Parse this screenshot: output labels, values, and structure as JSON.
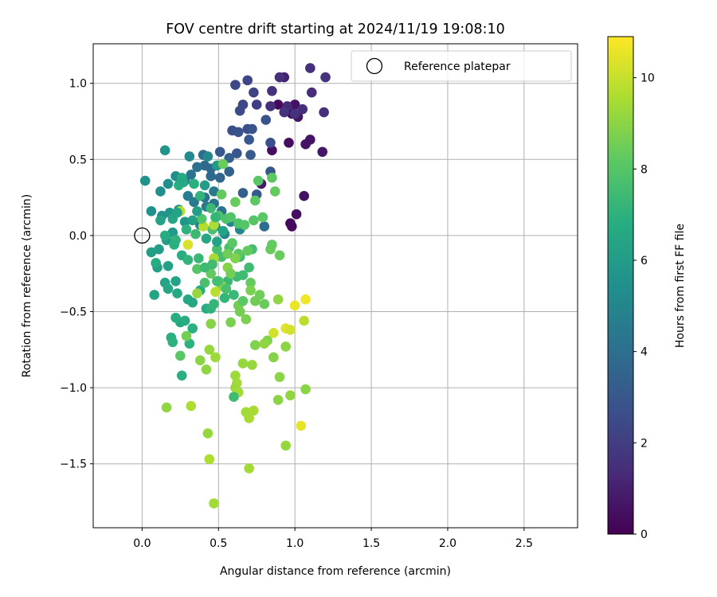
{
  "chart_data": {
    "type": "scatter",
    "title": "FOV centre drift starting at 2024/11/19 19:08:10",
    "xlabel": "Angular distance from reference (arcmin)",
    "ylabel": "Rotation from reference (arcmin)",
    "xlim": [
      -0.32,
      2.85
    ],
    "ylim": [
      -1.92,
      1.26
    ],
    "xticks": [
      0.0,
      0.5,
      1.0,
      1.5,
      2.0,
      2.5
    ],
    "xtick_labels": [
      "0.0",
      "0.5",
      "1.0",
      "1.5",
      "2.0",
      "2.5"
    ],
    "yticks": [
      -1.5,
      -1.0,
      -0.5,
      0.0,
      0.5,
      1.0
    ],
    "ytick_labels": [
      "−1.5",
      "−1.0",
      "−0.5",
      "0.0",
      "0.5",
      "1.0"
    ],
    "grid": true,
    "legend": {
      "placement": "top-right",
      "label": "Reference platepar",
      "marker": "open-circle"
    },
    "reference_point": {
      "x": 0.0,
      "y": 0.0
    },
    "colorbar": {
      "label": "Hours from first FF file",
      "range": [
        0,
        10.9
      ],
      "ticks": [
        0,
        2,
        4,
        6,
        8,
        10
      ],
      "tick_labels": [
        "0",
        "2",
        "4",
        "6",
        "8",
        "10"
      ],
      "colormap": "viridis"
    },
    "points": [
      [
        0.89,
        0.86,
        0.3
      ],
      [
        0.98,
        0.8,
        0.4
      ],
      [
        1.07,
        0.6,
        0.6
      ],
      [
        1.1,
        0.63,
        0.6
      ],
      [
        1.18,
        0.55,
        0.7
      ],
      [
        1.0,
        0.86,
        0.5
      ],
      [
        1.02,
        0.78,
        0.6
      ],
      [
        0.85,
        0.56,
        0.4
      ],
      [
        0.98,
        0.06,
        0.3
      ],
      [
        0.97,
        0.08,
        0.3
      ],
      [
        1.01,
        0.14,
        0.4
      ],
      [
        1.06,
        0.26,
        0.5
      ],
      [
        0.96,
        0.61,
        0.4
      ],
      [
        0.78,
        0.34,
        0.8
      ],
      [
        0.93,
        1.04,
        1.0
      ],
      [
        1.1,
        1.1,
        1.5
      ],
      [
        1.2,
        1.04,
        1.6
      ],
      [
        1.11,
        0.94,
        1.4
      ],
      [
        1.19,
        0.81,
        1.5
      ],
      [
        1.05,
        0.83,
        1.4
      ],
      [
        0.95,
        0.85,
        1.3
      ],
      [
        0.9,
        1.04,
        1.5
      ],
      [
        0.85,
        0.95,
        1.6
      ],
      [
        0.84,
        0.85,
        1.5
      ],
      [
        0.93,
        0.81,
        1.6
      ],
      [
        1.0,
        0.8,
        1.6
      ],
      [
        0.75,
        0.86,
        2.0
      ],
      [
        0.73,
        0.94,
        2.2
      ],
      [
        0.69,
        1.02,
        2.3
      ],
      [
        0.61,
        0.99,
        2.4
      ],
      [
        0.66,
        0.86,
        2.4
      ],
      [
        0.64,
        0.82,
        2.5
      ],
      [
        0.59,
        0.69,
        2.6
      ],
      [
        0.63,
        0.68,
        2.8
      ],
      [
        0.69,
        0.7,
        2.7
      ],
      [
        0.81,
        0.76,
        2.8
      ],
      [
        0.84,
        0.61,
        2.7
      ],
      [
        0.72,
        0.7,
        2.9
      ],
      [
        0.7,
        0.63,
        3.0
      ],
      [
        0.62,
        0.54,
        3.0
      ],
      [
        0.51,
        0.55,
        3.1
      ],
      [
        0.57,
        0.51,
        3.3
      ],
      [
        0.71,
        0.53,
        3.2
      ],
      [
        0.84,
        0.42,
        3.0
      ],
      [
        0.75,
        0.27,
        3.1
      ],
      [
        0.66,
        0.28,
        3.3
      ],
      [
        0.57,
        0.42,
        3.5
      ],
      [
        0.51,
        0.38,
        3.6
      ],
      [
        0.45,
        0.44,
        3.7
      ],
      [
        0.41,
        0.46,
        3.8
      ],
      [
        0.45,
        0.39,
        3.8
      ],
      [
        0.4,
        0.53,
        3.9
      ],
      [
        0.36,
        0.45,
        4.0
      ],
      [
        0.32,
        0.4,
        4.2
      ],
      [
        0.28,
        0.36,
        4.3
      ],
      [
        0.41,
        0.25,
        4.1
      ],
      [
        0.47,
        0.21,
        4.2
      ],
      [
        0.52,
        0.16,
        4.3
      ],
      [
        0.47,
        0.29,
        4.4
      ],
      [
        0.42,
        0.19,
        4.5
      ],
      [
        0.34,
        0.22,
        4.5
      ],
      [
        0.3,
        0.26,
        4.6
      ],
      [
        0.38,
        0.07,
        4.7
      ],
      [
        0.48,
        0.06,
        4.8
      ],
      [
        0.54,
        0.01,
        4.9
      ],
      [
        0.58,
        0.09,
        4.9
      ],
      [
        0.64,
        0.04,
        5.0
      ],
      [
        0.8,
        0.06,
        3.9
      ],
      [
        0.43,
        0.52,
        5.1
      ],
      [
        0.31,
        0.52,
        5.2
      ],
      [
        0.22,
        0.39,
        5.3
      ],
      [
        0.17,
        0.34,
        5.4
      ],
      [
        0.12,
        0.29,
        5.4
      ],
      [
        0.02,
        0.36,
        5.6
      ],
      [
        0.15,
        0.56,
        5.7
      ],
      [
        0.06,
        0.16,
        5.5
      ],
      [
        0.13,
        0.13,
        5.6
      ],
      [
        0.18,
        0.15,
        5.7
      ],
      [
        0.24,
        0.17,
        5.8
      ],
      [
        0.28,
        0.09,
        5.7
      ],
      [
        0.2,
        0.02,
        5.9
      ],
      [
        0.16,
        -0.03,
        6.0
      ],
      [
        0.11,
        -0.09,
        6.0
      ],
      [
        0.06,
        -0.11,
        6.1
      ],
      [
        0.1,
        -0.21,
        6.2
      ],
      [
        0.17,
        -0.2,
        6.2
      ],
      [
        0.22,
        -0.3,
        6.3
      ],
      [
        0.15,
        -0.31,
        6.4
      ],
      [
        0.08,
        -0.39,
        6.4
      ],
      [
        0.17,
        -0.35,
        6.5
      ],
      [
        0.23,
        -0.38,
        6.6
      ],
      [
        0.3,
        -0.42,
        6.6
      ],
      [
        0.33,
        -0.44,
        6.5
      ],
      [
        0.38,
        -0.36,
        6.7
      ],
      [
        0.42,
        -0.48,
        6.7
      ],
      [
        0.25,
        -0.57,
        6.6
      ],
      [
        0.22,
        -0.54,
        6.8
      ],
      [
        0.28,
        -0.56,
        6.8
      ],
      [
        0.33,
        -0.61,
        6.9
      ],
      [
        0.19,
        -0.67,
        6.9
      ],
      [
        0.2,
        -0.7,
        7.0
      ],
      [
        0.31,
        -0.71,
        7.0
      ],
      [
        0.26,
        -0.92,
        6.9
      ],
      [
        0.45,
        -0.48,
        7.1
      ],
      [
        0.47,
        -0.45,
        7.2
      ],
      [
        0.54,
        -0.41,
        7.2
      ],
      [
        0.6,
        -0.39,
        7.3
      ],
      [
        0.56,
        -0.3,
        7.3
      ],
      [
        0.62,
        -0.27,
        7.4
      ],
      [
        0.66,
        -0.26,
        7.5
      ],
      [
        0.7,
        -0.21,
        7.5
      ],
      [
        0.72,
        -0.09,
        7.6
      ],
      [
        0.64,
        -0.14,
        7.5
      ],
      [
        0.57,
        -0.08,
        7.6
      ],
      [
        0.52,
        -0.14,
        7.6
      ],
      [
        0.49,
        -0.09,
        7.7
      ],
      [
        0.46,
        0.04,
        7.7
      ],
      [
        0.5,
        0.13,
        7.8
      ],
      [
        0.55,
        0.11,
        7.8
      ],
      [
        0.58,
        0.12,
        7.9
      ],
      [
        0.63,
        0.08,
        7.9
      ],
      [
        0.67,
        0.07,
        8.0
      ],
      [
        0.73,
        0.1,
        8.0
      ],
      [
        0.79,
        0.12,
        8.1
      ],
      [
        0.76,
        0.36,
        8.1
      ],
      [
        0.74,
        0.23,
        8.2
      ],
      [
        0.85,
        0.38,
        8.2
      ],
      [
        0.87,
        0.29,
        8.3
      ],
      [
        0.59,
        -0.05,
        8.1
      ],
      [
        0.63,
        -0.12,
        8.2
      ],
      [
        0.69,
        -0.1,
        8.3
      ],
      [
        0.71,
        -0.31,
        8.3
      ],
      [
        0.84,
        -0.09,
        8.4
      ],
      [
        0.9,
        -0.13,
        8.4
      ],
      [
        0.85,
        -0.06,
        8.3
      ],
      [
        0.8,
        -0.45,
        8.4
      ],
      [
        0.74,
        -0.43,
        8.5
      ],
      [
        0.77,
        -0.39,
        8.5
      ],
      [
        0.63,
        -0.46,
        8.6
      ],
      [
        0.64,
        -0.5,
        8.6
      ],
      [
        0.58,
        -0.57,
        8.7
      ],
      [
        0.68,
        -0.55,
        8.7
      ],
      [
        0.74,
        -0.72,
        8.8
      ],
      [
        0.82,
        -0.69,
        8.8
      ],
      [
        0.86,
        -0.8,
        8.9
      ],
      [
        0.9,
        -0.93,
        9.0
      ],
      [
        0.94,
        -0.73,
        9.0
      ],
      [
        0.8,
        -0.71,
        9.1
      ],
      [
        0.89,
        -0.42,
        9.1
      ],
      [
        0.66,
        -0.84,
        9.2
      ],
      [
        0.72,
        -0.85,
        9.2
      ],
      [
        0.61,
        -0.92,
        9.3
      ],
      [
        0.62,
        -0.97,
        9.4
      ],
      [
        0.61,
        -1.0,
        9.3
      ],
      [
        0.63,
        -1.03,
        9.4
      ],
      [
        0.7,
        -1.2,
        9.5
      ],
      [
        0.68,
        -1.16,
        9.4
      ],
      [
        0.73,
        -1.15,
        9.5
      ],
      [
        0.6,
        -1.06,
        7.5
      ],
      [
        0.89,
        -1.08,
        9.0
      ],
      [
        0.97,
        -1.05,
        9.1
      ],
      [
        1.07,
        -1.01,
        9.0
      ],
      [
        0.94,
        -1.38,
        9.2
      ],
      [
        0.7,
        -1.53,
        9.4
      ],
      [
        0.43,
        -1.3,
        9.2
      ],
      [
        0.44,
        -1.47,
        9.6
      ],
      [
        0.47,
        -1.76,
        9.4
      ],
      [
        0.32,
        -1.12,
        9.6
      ],
      [
        0.16,
        -1.13,
        9.1
      ],
      [
        0.42,
        -0.88,
        9.1
      ],
      [
        0.44,
        -0.75,
        9.2
      ],
      [
        0.38,
        -0.82,
        9.0
      ],
      [
        0.48,
        -0.8,
        9.3
      ],
      [
        0.36,
        -0.38,
        9.2
      ],
      [
        0.45,
        -0.58,
        8.9
      ],
      [
        0.52,
        -0.33,
        9.0
      ],
      [
        0.56,
        -0.21,
        8.9
      ],
      [
        0.61,
        -0.15,
        8.8
      ],
      [
        0.47,
        -0.15,
        9.5
      ],
      [
        0.48,
        -0.37,
        9.8
      ],
      [
        0.3,
        -0.06,
        10.3
      ],
      [
        0.4,
        0.06,
        9.7
      ],
      [
        0.47,
        0.07,
        9.6
      ],
      [
        0.25,
        0.16,
        9.8
      ],
      [
        0.86,
        -0.64,
        10.2
      ],
      [
        0.94,
        -0.61,
        10.4
      ],
      [
        0.97,
        -0.62,
        10.2
      ],
      [
        1.0,
        -0.46,
        10.6
      ],
      [
        1.07,
        -0.42,
        10.7
      ],
      [
        1.06,
        -0.56,
        9.8
      ],
      [
        1.04,
        -1.25,
        10.5
      ],
      [
        0.29,
        -0.66,
        8.6
      ],
      [
        0.25,
        -0.79,
        8.1
      ],
      [
        0.36,
        -0.22,
        8.0
      ],
      [
        0.41,
        -0.31,
        7.7
      ],
      [
        0.5,
        -0.3,
        7.9
      ],
      [
        0.45,
        -0.25,
        8.3
      ],
      [
        0.56,
        -0.12,
        8.5
      ],
      [
        0.58,
        -0.25,
        8.6
      ],
      [
        0.66,
        -0.43,
        8.1
      ],
      [
        0.71,
        -0.36,
        8.7
      ],
      [
        0.61,
        0.22,
        8.4
      ],
      [
        0.52,
        0.27,
        8.3
      ],
      [
        0.39,
        0.11,
        7.9
      ],
      [
        0.35,
        0.01,
        7.4
      ],
      [
        0.29,
        0.04,
        7.0
      ],
      [
        0.22,
        -0.03,
        7.1
      ],
      [
        0.21,
        -0.06,
        6.9
      ],
      [
        0.15,
        0.0,
        6.8
      ],
      [
        0.09,
        -0.18,
        6.7
      ],
      [
        0.26,
        -0.13,
        6.8
      ],
      [
        0.3,
        -0.16,
        7.1
      ],
      [
        0.37,
        -0.15,
        7.3
      ],
      [
        0.41,
        -0.21,
        7.4
      ],
      [
        0.46,
        -0.19,
        7.5
      ],
      [
        0.49,
        -0.3,
        7.6
      ],
      [
        0.55,
        -0.35,
        7.7
      ],
      [
        0.45,
        0.18,
        7.4
      ],
      [
        0.38,
        0.26,
        7.1
      ],
      [
        0.34,
        0.34,
        6.9
      ],
      [
        0.26,
        0.38,
        6.7
      ],
      [
        0.24,
        0.33,
        6.8
      ],
      [
        0.27,
        0.35,
        6.6
      ],
      [
        0.2,
        0.11,
        6.5
      ],
      [
        0.23,
        0.15,
        6.4
      ],
      [
        0.12,
        0.1,
        6.3
      ],
      [
        0.33,
        0.1,
        6.2
      ],
      [
        0.36,
        0.16,
        6.1
      ],
      [
        0.41,
        0.33,
        6.0
      ],
      [
        0.49,
        0.46,
        5.9
      ],
      [
        0.53,
        0.47,
        8.4
      ],
      [
        0.49,
        -0.04,
        6.3
      ],
      [
        0.53,
        0.03,
        6.4
      ],
      [
        0.42,
        -0.02,
        6.5
      ],
      [
        0.48,
        0.12,
        7.2
      ]
    ]
  }
}
